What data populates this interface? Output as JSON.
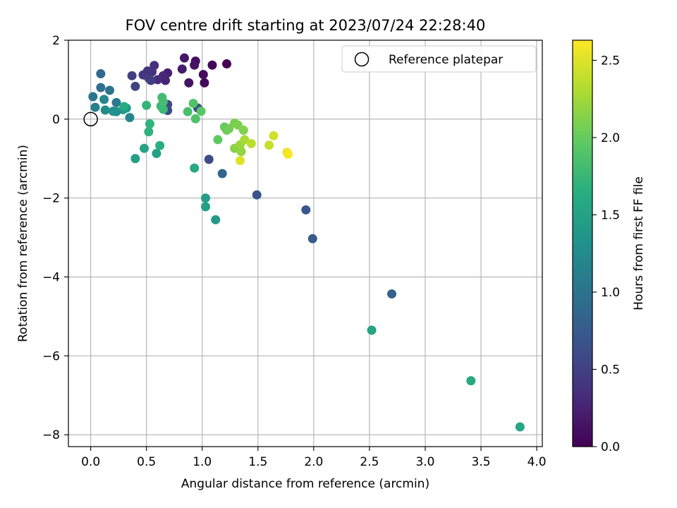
{
  "chart_data": {
    "type": "scatter",
    "title": "FOV centre drift starting at 2023/07/24 22:28:40",
    "xlabel": "Angular distance from reference (arcmin)",
    "ylabel": "Rotation from reference (arcmin)",
    "xlim": [
      -0.2,
      4.05
    ],
    "ylim": [
      -8.3,
      2.0
    ],
    "x_ticks": [
      0.0,
      0.5,
      1.0,
      1.5,
      2.0,
      2.5,
      3.0,
      3.5,
      4.0
    ],
    "x_tick_labels": [
      "0.0",
      "0.5",
      "1.0",
      "1.5",
      "2.0",
      "2.5",
      "3.0",
      "3.5",
      "4.0"
    ],
    "y_ticks": [
      2,
      0,
      -2,
      -4,
      -6,
      -8
    ],
    "y_tick_labels": [
      "2",
      "0",
      "−2",
      "−4",
      "−6",
      "−8"
    ],
    "grid": true,
    "legend": {
      "placement": "top-right",
      "label": "Reference platepar"
    },
    "reference_point": {
      "x": 0.0,
      "y": 0.0
    },
    "colorbar": {
      "label": "Hours from first FF file",
      "colormap": "viridis",
      "range": [
        0.0,
        2.63
      ],
      "ticks": [
        0.0,
        0.5,
        1.0,
        1.5,
        2.0,
        2.5
      ],
      "tick_labels": [
        "0.0",
        "0.5",
        "1.0",
        "1.5",
        "2.0",
        "2.5"
      ]
    },
    "points": [
      {
        "x": 1.22,
        "y": 1.4,
        "c": 0.0
      },
      {
        "x": 1.09,
        "y": 1.37,
        "c": 0.03
      },
      {
        "x": 1.02,
        "y": 0.92,
        "c": 0.05
      },
      {
        "x": 1.01,
        "y": 1.13,
        "c": 0.08
      },
      {
        "x": 0.94,
        "y": 1.47,
        "c": 0.1
      },
      {
        "x": 0.93,
        "y": 1.37,
        "c": 0.12
      },
      {
        "x": 0.88,
        "y": 0.92,
        "c": 0.14
      },
      {
        "x": 0.84,
        "y": 1.55,
        "c": 0.17
      },
      {
        "x": 0.82,
        "y": 1.27,
        "c": 0.2
      },
      {
        "x": 0.69,
        "y": 1.17,
        "c": 0.23
      },
      {
        "x": 0.67,
        "y": 0.98,
        "c": 0.26
      },
      {
        "x": 0.65,
        "y": 1.1,
        "c": 0.29
      },
      {
        "x": 0.6,
        "y": 1.0,
        "c": 0.32
      },
      {
        "x": 0.57,
        "y": 1.36,
        "c": 0.35
      },
      {
        "x": 0.55,
        "y": 1.2,
        "c": 0.38
      },
      {
        "x": 0.51,
        "y": 1.22,
        "c": 0.4
      },
      {
        "x": 0.47,
        "y": 1.12,
        "c": 0.42
      },
      {
        "x": 0.52,
        "y": 1.04,
        "c": 0.45
      },
      {
        "x": 0.54,
        "y": 0.98,
        "c": 0.48
      },
      {
        "x": 0.37,
        "y": 1.1,
        "c": 0.5
      },
      {
        "x": 0.4,
        "y": 0.83,
        "c": 0.53
      },
      {
        "x": 0.69,
        "y": 0.37,
        "c": 0.56
      },
      {
        "x": 0.69,
        "y": 0.22,
        "c": 0.58
      },
      {
        "x": 1.06,
        "y": -1.02,
        "c": 0.6
      },
      {
        "x": 0.96,
        "y": 0.28,
        "c": 0.62
      },
      {
        "x": 1.49,
        "y": -1.92,
        "c": 0.68
      },
      {
        "x": 1.93,
        "y": -2.3,
        "c": 0.72
      },
      {
        "x": 1.99,
        "y": -3.03,
        "c": 0.75
      },
      {
        "x": 2.7,
        "y": -4.43,
        "c": 0.8
      },
      {
        "x": 1.18,
        "y": -1.38,
        "c": 0.85
      },
      {
        "x": 0.09,
        "y": 1.15,
        "c": 0.88
      },
      {
        "x": 0.09,
        "y": 0.8,
        "c": 0.95
      },
      {
        "x": 0.17,
        "y": 0.73,
        "c": 1.0
      },
      {
        "x": 0.02,
        "y": 0.57,
        "c": 1.03
      },
      {
        "x": 0.23,
        "y": 0.42,
        "c": 1.07
      },
      {
        "x": 0.04,
        "y": 0.3,
        "c": 1.12
      },
      {
        "x": 0.35,
        "y": 0.04,
        "c": 1.18
      },
      {
        "x": 0.12,
        "y": 0.5,
        "c": 1.2
      },
      {
        "x": 0.13,
        "y": 0.23,
        "c": 1.25
      },
      {
        "x": 0.2,
        "y": 0.2,
        "c": 1.3
      },
      {
        "x": 0.23,
        "y": 0.19,
        "c": 1.32
      },
      {
        "x": 0.29,
        "y": 0.24,
        "c": 1.35
      },
      {
        "x": 0.32,
        "y": 0.28,
        "c": 1.38
      },
      {
        "x": 1.12,
        "y": -2.55,
        "c": 1.42
      },
      {
        "x": 1.03,
        "y": -2.0,
        "c": 1.45
      },
      {
        "x": 1.03,
        "y": -2.22,
        "c": 1.47
      },
      {
        "x": 0.4,
        "y": -1.0,
        "c": 1.48
      },
      {
        "x": 0.59,
        "y": -0.87,
        "c": 1.5
      },
      {
        "x": 0.48,
        "y": -0.74,
        "c": 1.52
      },
      {
        "x": 2.52,
        "y": -5.35,
        "c": 1.53
      },
      {
        "x": 3.85,
        "y": -7.8,
        "c": 1.55
      },
      {
        "x": 3.41,
        "y": -6.63,
        "c": 1.58
      },
      {
        "x": 0.93,
        "y": -1.24,
        "c": 1.6
      },
      {
        "x": 0.3,
        "y": 0.32,
        "c": 1.62
      },
      {
        "x": 0.62,
        "y": -0.67,
        "c": 1.65
      },
      {
        "x": 0.52,
        "y": -0.32,
        "c": 1.68
      },
      {
        "x": 0.53,
        "y": -0.12,
        "c": 1.7
      },
      {
        "x": 0.5,
        "y": 0.35,
        "c": 1.72
      },
      {
        "x": 0.63,
        "y": 0.33,
        "c": 1.75
      },
      {
        "x": 0.65,
        "y": 0.25,
        "c": 1.78
      },
      {
        "x": 0.64,
        "y": 0.55,
        "c": 1.8
      },
      {
        "x": 0.65,
        "y": 0.44,
        "c": 1.82
      },
      {
        "x": 0.87,
        "y": 0.19,
        "c": 1.85
      },
      {
        "x": 0.94,
        "y": 0.01,
        "c": 1.88
      },
      {
        "x": 0.92,
        "y": 0.4,
        "c": 1.9
      },
      {
        "x": 0.99,
        "y": 0.2,
        "c": 1.93
      },
      {
        "x": 1.14,
        "y": -0.52,
        "c": 1.97
      },
      {
        "x": 1.2,
        "y": -0.2,
        "c": 2.0
      },
      {
        "x": 1.22,
        "y": -0.28,
        "c": 2.03
      },
      {
        "x": 1.24,
        "y": -0.24,
        "c": 2.05
      },
      {
        "x": 1.29,
        "y": -0.1,
        "c": 2.08
      },
      {
        "x": 1.32,
        "y": -0.15,
        "c": 2.1
      },
      {
        "x": 1.37,
        "y": -0.28,
        "c": 2.12
      },
      {
        "x": 1.29,
        "y": -0.74,
        "c": 2.15
      },
      {
        "x": 1.35,
        "y": -0.82,
        "c": 2.18
      },
      {
        "x": 1.34,
        "y": -0.65,
        "c": 2.22
      },
      {
        "x": 1.38,
        "y": -0.52,
        "c": 2.28
      },
      {
        "x": 1.44,
        "y": -0.62,
        "c": 2.35
      },
      {
        "x": 1.6,
        "y": -0.66,
        "c": 2.4
      },
      {
        "x": 1.64,
        "y": -0.42,
        "c": 2.45
      },
      {
        "x": 1.34,
        "y": -1.05,
        "c": 2.5
      },
      {
        "x": 1.76,
        "y": -0.84,
        "c": 2.55
      },
      {
        "x": 1.77,
        "y": -0.89,
        "c": 2.6
      }
    ]
  }
}
